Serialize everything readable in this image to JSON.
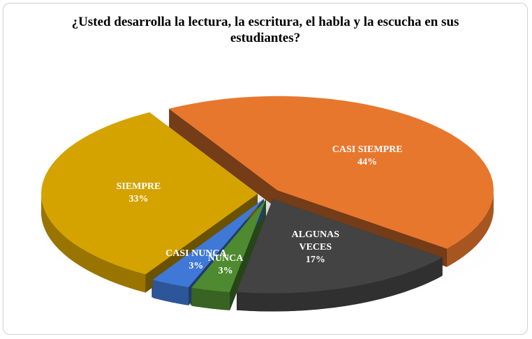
{
  "chart_data": {
    "type": "pie3d",
    "title": "¿Usted desarrolla la lectura, la escritura, el habla y la escucha en sus estudiantes?",
    "categories": [
      "CASI SIEMPRE",
      "ALGUNAS VECES",
      "NUNCA",
      "CASI NUNCA",
      "SIEMPRE"
    ],
    "values": [
      44,
      17,
      3,
      3,
      33
    ],
    "value_labels": [
      "44%",
      "17%",
      "3%",
      "3%",
      "33%"
    ],
    "colors": [
      "#e8772e",
      "#434343",
      "#4e8a30",
      "#3f78d6",
      "#d4a300"
    ]
  }
}
